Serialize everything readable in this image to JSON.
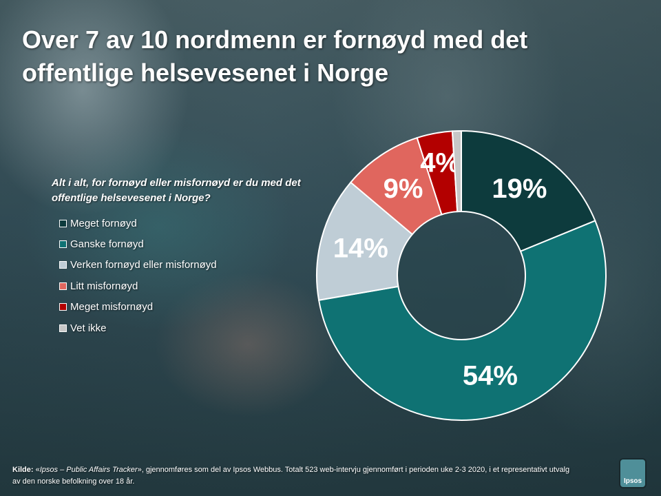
{
  "title": "Over 7 av 10 nordmenn er fornøyd med det offentlige helsevesenet i Norge",
  "question": "Alt i alt, for fornøyd eller misfornøyd er du med det offentlige helsevesenet i Norge?",
  "chart_data": {
    "type": "pie",
    "donut": true,
    "title": "Over 7 av 10 nordmenn er fornøyd med det offentlige helsevesenet i Norge",
    "legend_position": "left",
    "categories": [
      "Meget fornøyd",
      "Ganske fornøyd",
      "Verken fornøyd eller misfornøyd",
      "Litt misfornøyd",
      "Meget misfornøyd",
      "Vet ikke"
    ],
    "values": [
      19,
      54,
      14,
      9,
      4,
      1
    ],
    "labels": [
      "19%",
      "54%",
      "14%",
      "9%",
      "4%",
      ""
    ],
    "colors": [
      "#0d3b3d",
      "#0f7273",
      "#bfcdd6",
      "#e0665e",
      "#b30000",
      "#c7c7c7"
    ]
  },
  "source": {
    "label": "Kilde: ",
    "quote_open": "«",
    "tracker": "Ipsos – Public Affairs Tracker",
    "quote_close": "»,",
    "text": " gjennomføres som del av Ipsos Webbus. Totalt 523 web-intervju gjennomført i perioden uke 2-3 2020, i et representativt utvalg av den norske befolkning over 18 år."
  },
  "logo": {
    "text": "Ipsos"
  }
}
